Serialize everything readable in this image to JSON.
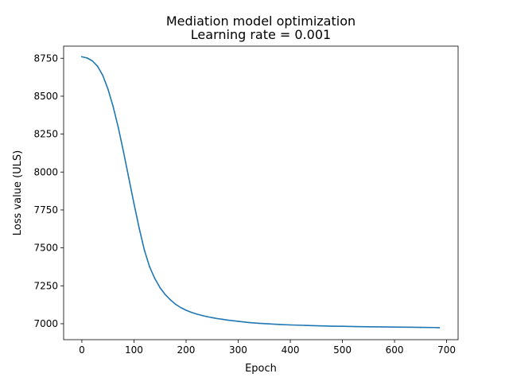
{
  "chart_data": {
    "type": "line",
    "title": "Mediation model optimization",
    "subtitle": "Learning rate = 0.001",
    "xlabel": "Epoch",
    "ylabel": "Loss value (ULS)",
    "xlim": [
      -35,
      722
    ],
    "ylim": [
      6895,
      8830
    ],
    "xticks": [
      0,
      100,
      200,
      300,
      400,
      500,
      600,
      700
    ],
    "xtick_labels": [
      "0",
      "100",
      "200",
      "300",
      "400",
      "500",
      "600",
      "700"
    ],
    "yticks": [
      7000,
      7250,
      7500,
      7750,
      8000,
      8250,
      8500,
      8750
    ],
    "ytick_labels": [
      "7000",
      "7250",
      "7500",
      "7750",
      "8000",
      "8250",
      "8500",
      "8750"
    ],
    "grid": false,
    "legend": "none",
    "series": [
      {
        "color": "#1f77b4",
        "x": [
          0,
          10,
          20,
          30,
          40,
          50,
          60,
          70,
          80,
          90,
          100,
          110,
          120,
          130,
          140,
          150,
          160,
          170,
          180,
          190,
          200,
          210,
          220,
          230,
          240,
          250,
          260,
          270,
          280,
          290,
          300,
          320,
          340,
          360,
          380,
          400,
          420,
          440,
          460,
          480,
          500,
          525,
          550,
          575,
          600,
          625,
          650,
          675,
          686
        ],
        "y": [
          8760,
          8752,
          8733,
          8698,
          8638,
          8548,
          8432,
          8292,
          8132,
          7962,
          7792,
          7630,
          7485,
          7375,
          7298,
          7238,
          7192,
          7157,
          7128,
          7106,
          7089,
          7075,
          7064,
          7055,
          7047,
          7040,
          7034,
          7029,
          7024,
          7020,
          7016,
          7008,
          7003,
          6999,
          6995,
          6992,
          6990,
          6988,
          6986,
          6984,
          6983,
          6981,
          6980,
          6979,
          6978,
          6977,
          6976,
          6975,
          6974
        ]
      }
    ]
  }
}
